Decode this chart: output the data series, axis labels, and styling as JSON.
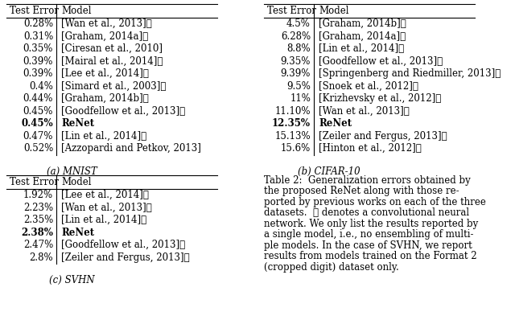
{
  "mnist_data": {
    "errors": [
      "0.28%",
      "0.31%",
      "0.35%",
      "0.39%",
      "0.39%",
      "0.4%",
      "0.44%",
      "0.45%",
      "0.45%",
      "0.47%",
      "0.52%"
    ],
    "models": [
      "[Wan et al., 2013]⋆",
      "[Graham, 2014a]⋆",
      "[Ciresan et al., 2010]",
      "[Mairal et al., 2014]⋆",
      "[Lee et al., 2014]⋆",
      "[Simard et al., 2003]⋆",
      "[Graham, 2014b]⋆",
      "[Goodfellow et al., 2013]⋆",
      "ReNet",
      "[Lin et al., 2014]⋆",
      "[Azzopardi and Petkov, 2013]"
    ],
    "bold_row": 8,
    "caption": "(a) MNIST"
  },
  "cifar_data": {
    "errors": [
      "4.5%",
      "6.28%",
      "8.8%",
      "9.35%",
      "9.39%",
      "9.5%",
      "11%",
      "11.10%",
      "12.35%",
      "15.13%",
      "15.6%"
    ],
    "models": [
      "[Graham, 2014b]⋆",
      "[Graham, 2014a]⋆",
      "[Lin et al., 2014]⋆",
      "[Goodfellow et al., 2013]⋆",
      "[Springenberg and Riedmiller, 2013]⋆",
      "[Snoek et al., 2012]⋆",
      "[Krizhevsky et al., 2012]⋆",
      "[Wan et al., 2013]⋆",
      "ReNet",
      "[Zeiler and Fergus, 2013]⋆",
      "[Hinton et al., 2012]⋆"
    ],
    "bold_row": 8,
    "caption": "(b) CIFAR-10"
  },
  "svhn_data": {
    "errors": [
      "1.92%",
      "2.23%",
      "2.35%",
      "2.38%",
      "2.47%",
      "2.8%"
    ],
    "models": [
      "[Lee et al., 2014]⋆",
      "[Wan et al., 2013]⋆",
      "[Lin et al., 2014]⋆",
      "ReNet",
      "[Goodfellow et al., 2013]⋆",
      "[Zeiler and Fergus, 2013]⋆"
    ],
    "bold_row": 3,
    "caption": "(c) SVHN"
  },
  "desc_line1": "Table 2:  Generalization errors obtained by",
  "desc_lines": [
    "the proposed ReNet along with those re-",
    "ported by previous works on each of the three",
    "datasets.  ⋆ denotes a convolutional neural",
    "network. We only list the results reported by",
    "a single model, i.e., no ensembling of multi-",
    "ple models. In the case of SVHN, we report",
    "results from models trained on the Format 2",
    "(cropped digit) dataset only."
  ],
  "bg_color": "#ffffff",
  "font_size": 8.5,
  "star": "⋆"
}
